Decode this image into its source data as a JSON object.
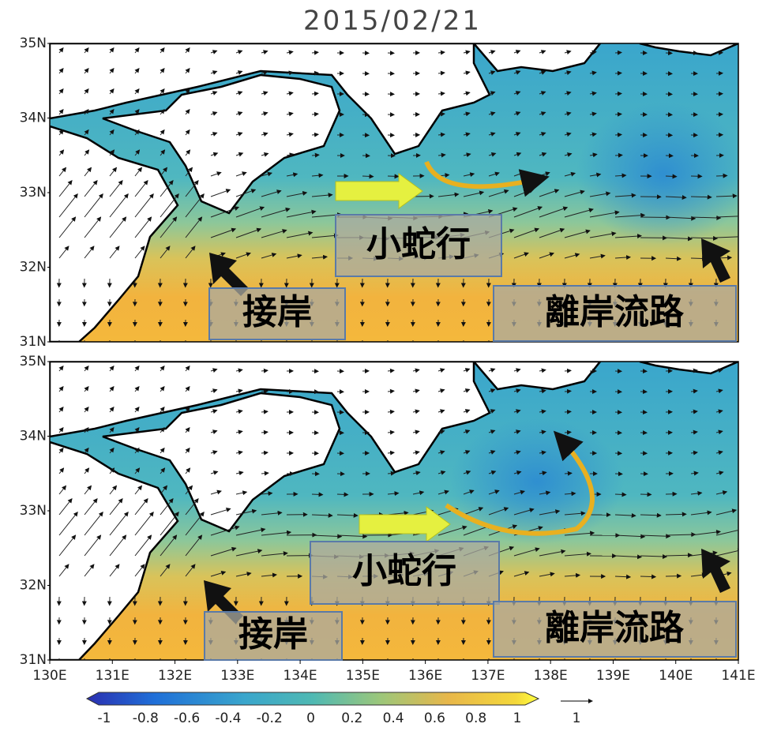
{
  "title": "2015/02/21",
  "lat_ticks": [
    "35N",
    "34N",
    "33N",
    "32N",
    "31N"
  ],
  "lon_ticks": [
    "130E",
    "131E",
    "132E",
    "133E",
    "134E",
    "135E",
    "136E",
    "137E",
    "138E",
    "139E",
    "140E",
    "141E"
  ],
  "colorbar_labels": [
    "-1",
    "-0.8",
    "-0.6",
    "-0.4",
    "-0.2",
    "0",
    "0.2",
    "0.4",
    "0.6",
    "0.8",
    "1"
  ],
  "vector_scale_label": "1",
  "panels": [
    {
      "annotations": {
        "small_meander": "小蛇行",
        "nearshore": "接岸",
        "offshore_path": "離岸流路"
      }
    },
    {
      "annotations": {
        "small_meander": "小蛇行",
        "nearshore": "接岸",
        "offshore_path": "離岸流路"
      }
    }
  ]
}
